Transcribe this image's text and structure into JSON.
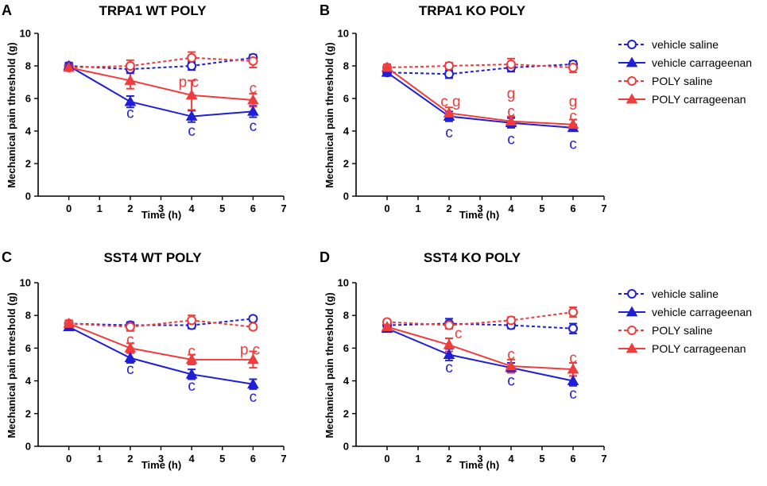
{
  "colors": {
    "blue": "#1f1fd6",
    "red": "#ef3c3c",
    "axis": "#000000"
  },
  "legend": {
    "entries": [
      {
        "label": "vehicle saline",
        "color": "#1f1fd6",
        "dashed": true,
        "marker": "circle"
      },
      {
        "label": "vehicle carrageenan",
        "color": "#1f1fd6",
        "dashed": false,
        "marker": "triangle"
      },
      {
        "label": "POLY saline",
        "color": "#ef3c3c",
        "dashed": true,
        "marker": "circle"
      },
      {
        "label": "POLY carrageenan",
        "color": "#ef3c3c",
        "dashed": false,
        "marker": "triangle"
      }
    ]
  },
  "chart_data": [
    {
      "panel": "A",
      "type": "line",
      "title": "TRPA1 WT POLY",
      "xlabel": "Time (h)",
      "ylabel": "Mechanical pain threshold (g)",
      "xlim": [
        -1,
        7
      ],
      "ylim": [
        0,
        10
      ],
      "xticks": [
        0,
        1,
        2,
        3,
        4,
        5,
        6,
        7
      ],
      "yticks": [
        0,
        2,
        4,
        6,
        8,
        10
      ],
      "series": [
        {
          "name": "vehicle saline",
          "x": [
            0,
            2,
            4,
            6
          ],
          "y": [
            8.0,
            7.8,
            8.0,
            8.5
          ],
          "err": [
            0.2,
            0.25,
            0.25,
            0.2
          ]
        },
        {
          "name": "vehicle carrageenan",
          "x": [
            0,
            2,
            4,
            6
          ],
          "y": [
            8.0,
            5.8,
            4.9,
            5.2
          ],
          "err": [
            0.2,
            0.35,
            0.35,
            0.35
          ]
        },
        {
          "name": "POLY saline",
          "x": [
            0,
            2,
            4,
            6
          ],
          "y": [
            7.9,
            8.0,
            8.5,
            8.3
          ],
          "err": [
            0.2,
            0.35,
            0.35,
            0.4
          ]
        },
        {
          "name": "POLY carrageenan",
          "x": [
            0,
            2,
            4,
            6
          ],
          "y": [
            7.9,
            7.1,
            6.2,
            5.9
          ],
          "err": [
            0.2,
            0.5,
            0.9,
            0.4
          ]
        }
      ],
      "annotations": [
        {
          "text": "c",
          "x": 2,
          "y": 5.1,
          "color": "blue"
        },
        {
          "text": "c",
          "x": 4,
          "y": 4.0,
          "color": "blue"
        },
        {
          "text": "c",
          "x": 6,
          "y": 4.3,
          "color": "blue"
        },
        {
          "text": "p c",
          "x": 3.9,
          "y": 7.0,
          "color": "red"
        },
        {
          "text": "c",
          "x": 6,
          "y": 6.6,
          "color": "red"
        }
      ]
    },
    {
      "panel": "B",
      "type": "line",
      "title": "TRPA1 KO POLY",
      "xlabel": "Time (h)",
      "ylabel": "Mechanical pain threshold (g)",
      "xlim": [
        -1,
        7
      ],
      "ylim": [
        0,
        10
      ],
      "xticks": [
        0,
        1,
        2,
        3,
        4,
        5,
        6,
        7
      ],
      "yticks": [
        0,
        2,
        4,
        6,
        8,
        10
      ],
      "series": [
        {
          "name": "vehicle saline",
          "x": [
            0,
            2,
            4,
            6
          ],
          "y": [
            7.6,
            7.5,
            7.9,
            8.1
          ],
          "err": [
            0.15,
            0.25,
            0.25,
            0.2
          ]
        },
        {
          "name": "vehicle carrageenan",
          "x": [
            0,
            2,
            4,
            6
          ],
          "y": [
            7.6,
            4.9,
            4.5,
            4.2
          ],
          "err": [
            0.15,
            0.3,
            0.3,
            0.2
          ]
        },
        {
          "name": "POLY saline",
          "x": [
            0,
            2,
            4,
            6
          ],
          "y": [
            7.9,
            8.0,
            8.1,
            7.9
          ],
          "err": [
            0.2,
            0.2,
            0.35,
            0.3
          ]
        },
        {
          "name": "POLY carrageenan",
          "x": [
            0,
            2,
            4,
            6
          ],
          "y": [
            7.9,
            5.1,
            4.6,
            4.4
          ],
          "err": [
            0.2,
            0.35,
            0.3,
            0.3
          ]
        }
      ],
      "annotations": [
        {
          "text": "c",
          "x": 2,
          "y": 3.9,
          "color": "blue"
        },
        {
          "text": "c",
          "x": 4,
          "y": 3.5,
          "color": "blue"
        },
        {
          "text": "c",
          "x": 6,
          "y": 3.2,
          "color": "blue"
        },
        {
          "text": "c g",
          "x": 2.05,
          "y": 5.8,
          "color": "red"
        },
        {
          "text": "g",
          "x": 4,
          "y": 6.3,
          "color": "red"
        },
        {
          "text": "c",
          "x": 4,
          "y": 5.2,
          "color": "red"
        },
        {
          "text": "g",
          "x": 6,
          "y": 5.8,
          "color": "red"
        },
        {
          "text": "c",
          "x": 6,
          "y": 4.9,
          "color": "red"
        }
      ]
    },
    {
      "panel": "C",
      "type": "line",
      "title": "SST4 WT POLY",
      "xlabel": "Time (h)",
      "ylabel": "Mechanical pain threshold (g)",
      "xlim": [
        -1,
        7
      ],
      "ylim": [
        0,
        10
      ],
      "xticks": [
        0,
        1,
        2,
        3,
        4,
        5,
        6,
        7
      ],
      "yticks": [
        0,
        2,
        4,
        6,
        8,
        10
      ],
      "series": [
        {
          "name": "vehicle saline",
          "x": [
            0,
            2,
            4,
            6
          ],
          "y": [
            7.5,
            7.4,
            7.4,
            7.8
          ],
          "err": [
            0.15,
            0.2,
            0.2,
            0.15
          ]
        },
        {
          "name": "vehicle carrageenan",
          "x": [
            0,
            2,
            4,
            6
          ],
          "y": [
            7.3,
            5.4,
            4.4,
            3.8
          ],
          "err": [
            0.15,
            0.3,
            0.3,
            0.3
          ]
        },
        {
          "name": "POLY saline",
          "x": [
            0,
            2,
            4,
            6
          ],
          "y": [
            7.5,
            7.3,
            7.7,
            7.3
          ],
          "err": [
            0.2,
            0.25,
            0.3,
            0.15
          ]
        },
        {
          "name": "POLY carrageenan",
          "x": [
            0,
            2,
            4,
            6
          ],
          "y": [
            7.5,
            6.0,
            5.3,
            5.3
          ],
          "err": [
            0.2,
            0.3,
            0.3,
            0.5
          ]
        }
      ],
      "annotations": [
        {
          "text": "c",
          "x": 2,
          "y": 4.7,
          "color": "blue"
        },
        {
          "text": "c",
          "x": 4,
          "y": 3.7,
          "color": "blue"
        },
        {
          "text": "c",
          "x": 6,
          "y": 3.0,
          "color": "blue"
        },
        {
          "text": "c",
          "x": 2,
          "y": 6.5,
          "color": "red"
        },
        {
          "text": "c",
          "x": 4,
          "y": 5.8,
          "color": "red"
        },
        {
          "text": "p c",
          "x": 5.9,
          "y": 5.9,
          "color": "red"
        }
      ]
    },
    {
      "panel": "D",
      "type": "line",
      "title": "SST4 KO POLY",
      "xlabel": "Time (h)",
      "ylabel": "Mechanical pain threshold (g)",
      "xlim": [
        -1,
        7
      ],
      "ylim": [
        0,
        10
      ],
      "xticks": [
        0,
        1,
        2,
        3,
        4,
        5,
        6,
        7
      ],
      "yticks": [
        0,
        2,
        4,
        6,
        8,
        10
      ],
      "series": [
        {
          "name": "vehicle saline",
          "x": [
            0,
            2,
            4,
            6
          ],
          "y": [
            7.4,
            7.5,
            7.4,
            7.2
          ],
          "err": [
            0.15,
            0.3,
            0.2,
            0.3
          ]
        },
        {
          "name": "vehicle carrageenan",
          "x": [
            0,
            2,
            4,
            6
          ],
          "y": [
            7.2,
            5.6,
            4.8,
            4.0
          ],
          "err": [
            0.2,
            0.35,
            0.3,
            0.3
          ]
        },
        {
          "name": "POLY saline",
          "x": [
            0,
            2,
            4,
            6
          ],
          "y": [
            7.6,
            7.4,
            7.7,
            8.2
          ],
          "err": [
            0.15,
            0.2,
            0.2,
            0.3
          ]
        },
        {
          "name": "POLY carrageenan",
          "x": [
            0,
            2,
            4,
            6
          ],
          "y": [
            7.3,
            6.2,
            4.9,
            4.7
          ],
          "err": [
            0.2,
            0.4,
            0.4,
            0.4
          ]
        }
      ],
      "annotations": [
        {
          "text": "c",
          "x": 2,
          "y": 4.8,
          "color": "blue"
        },
        {
          "text": "c",
          "x": 4,
          "y": 4.0,
          "color": "blue"
        },
        {
          "text": "c",
          "x": 6,
          "y": 3.2,
          "color": "blue"
        },
        {
          "text": "c",
          "x": 2.3,
          "y": 6.9,
          "color": "red"
        },
        {
          "text": "c",
          "x": 4,
          "y": 5.6,
          "color": "red"
        },
        {
          "text": "c",
          "x": 6,
          "y": 5.4,
          "color": "red"
        }
      ]
    }
  ]
}
